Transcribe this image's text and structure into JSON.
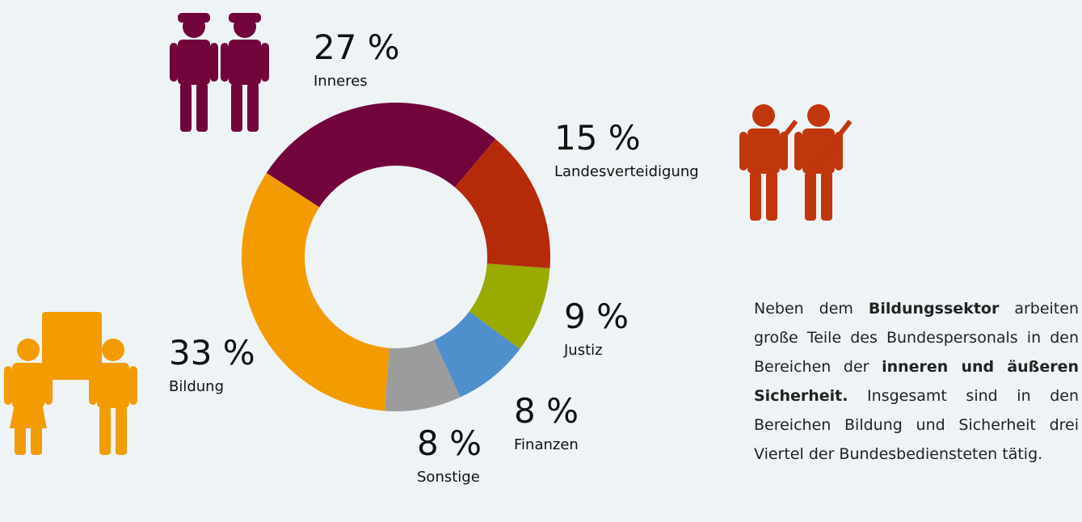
{
  "chart_data": {
    "type": "donut",
    "categories": [
      "Inneres",
      "Landesverteidigung",
      "Justiz",
      "Finanzen",
      "Sonstige",
      "Bildung"
    ],
    "values": [
      27,
      15,
      9,
      8,
      8,
      33
    ],
    "value_labels": [
      "27 %",
      "15 %",
      "9 %",
      "8 %",
      "8 %",
      "33 %"
    ],
    "colors": [
      "#72043c",
      "#b52b0a",
      "#99aa00",
      "#4f8fcc",
      "#9c9c9c",
      "#f39c00"
    ]
  },
  "text": {
    "segments": [
      {
        "text": "Neben dem ",
        "bold": false
      },
      {
        "text": "Bildungssektor",
        "bold": true
      },
      {
        "text": " arbeiten große Teile des Bundespersonals in den Bereichen der ",
        "bold": false
      },
      {
        "text": "inneren und äußeren Sicherheit.",
        "bold": true
      },
      {
        "text": " Insgesamt sind in den Bereichen Bildung und Sicherheit drei Viertel der Bundesbediensteten tätig.",
        "bold": false
      }
    ]
  }
}
